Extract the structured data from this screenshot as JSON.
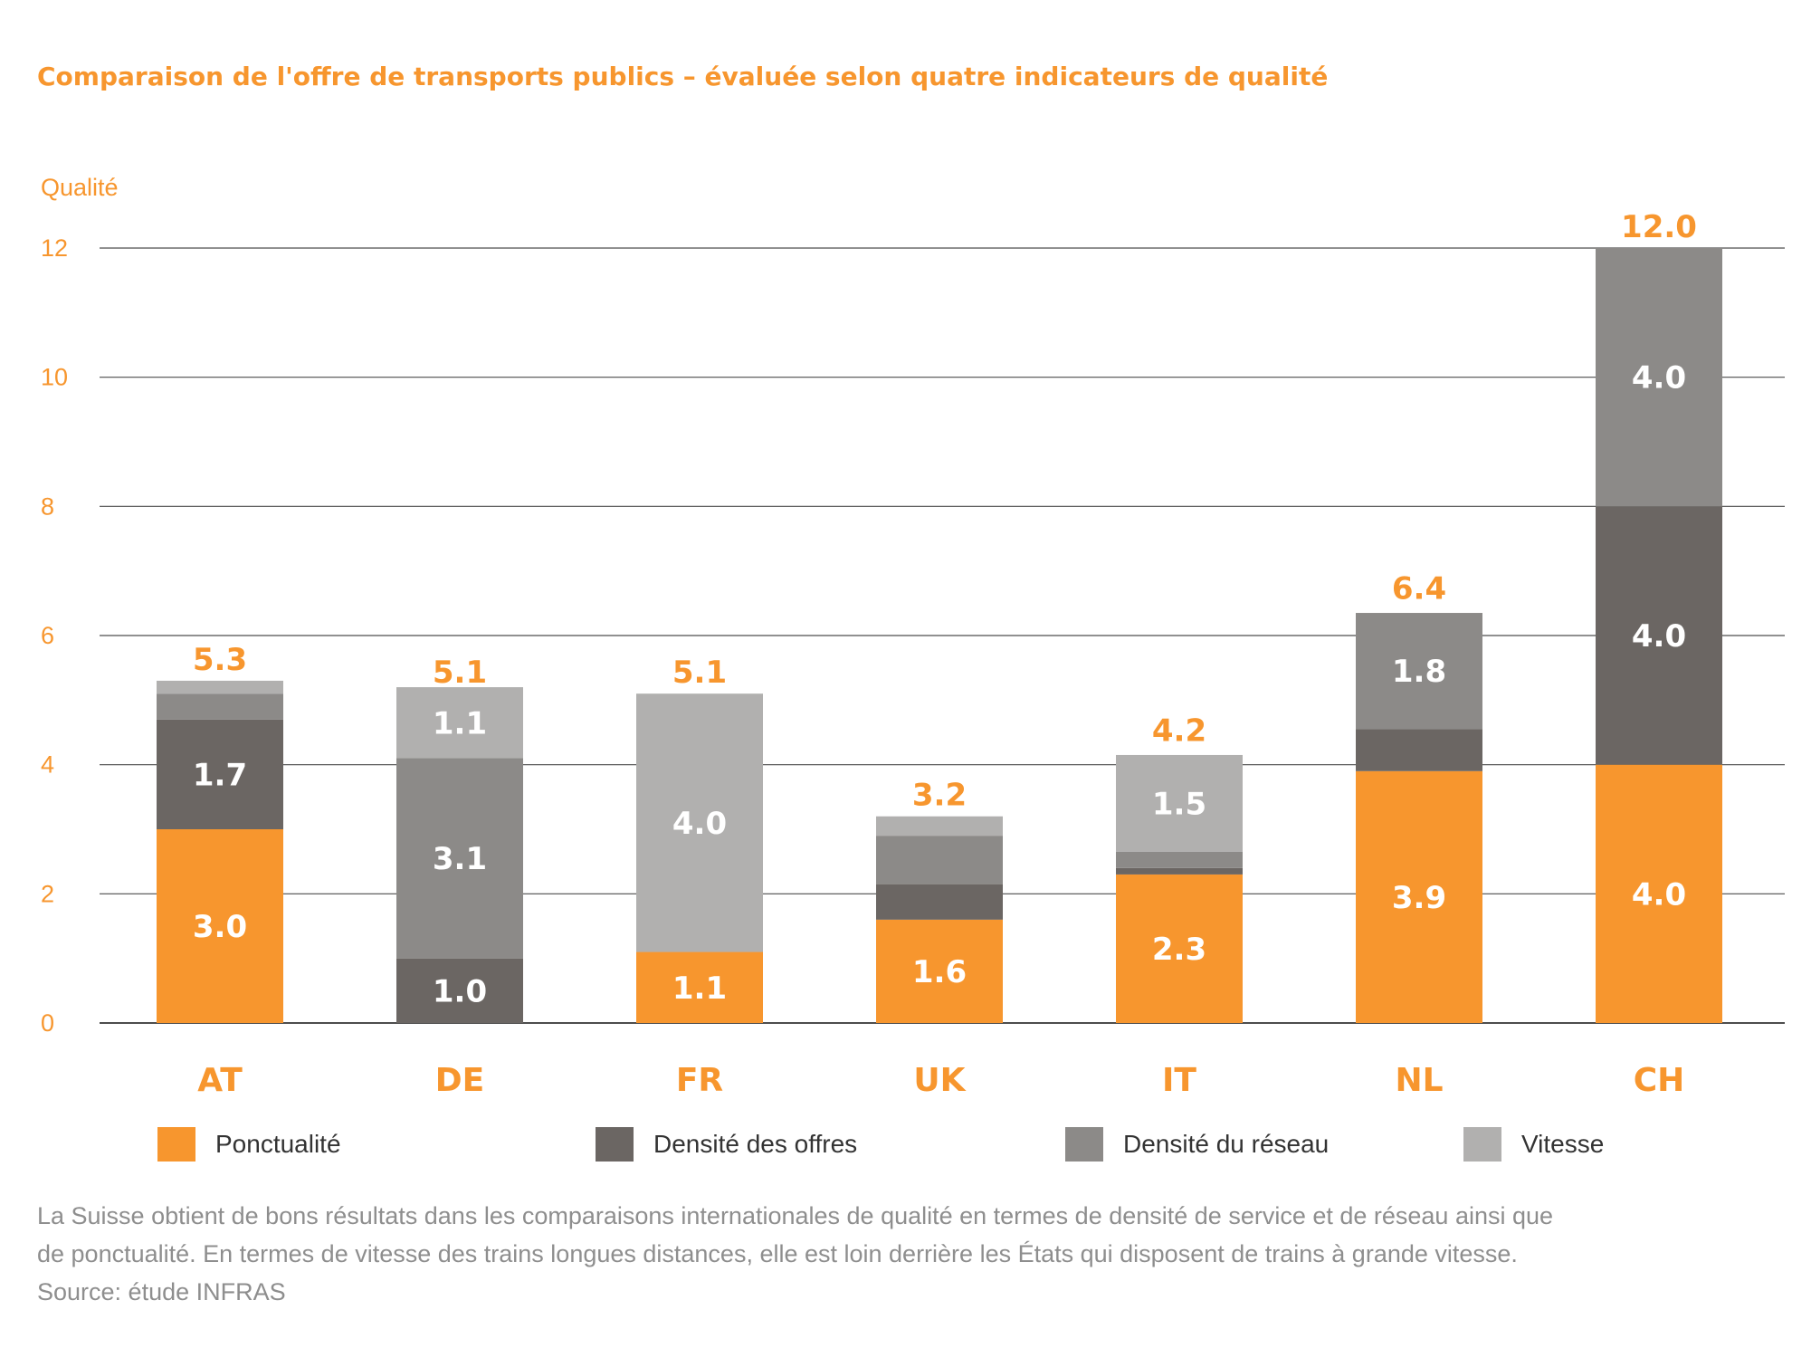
{
  "chart_data": {
    "type": "bar",
    "stacked": true,
    "title": "Comparaison de l'offre de transports publics – évaluée selon quatre indicateurs de qualité",
    "ylabel": "Qualité",
    "xlabel": "",
    "ylim": [
      0,
      12
    ],
    "yticks": [
      "0",
      "2",
      "4",
      "6",
      "8",
      "10",
      "12"
    ],
    "categories": [
      "AT",
      "DE",
      "FR",
      "UK",
      "IT",
      "NL",
      "CH"
    ],
    "totals": [
      5.3,
      5.1,
      5.1,
      3.2,
      4.2,
      6.4,
      12.0
    ],
    "total_labels": [
      "5.3",
      "5.1",
      "5.1",
      "3.2",
      "4.2",
      "6.4",
      "12.0"
    ],
    "series": [
      {
        "name": "Ponctualité",
        "color": "#f7962e",
        "values": [
          3.0,
          0.0,
          1.1,
          1.6,
          2.3,
          3.9,
          4.0
        ],
        "labels": [
          "3.0",
          "",
          "1.1",
          "1.6",
          "2.3",
          "3.9",
          "4.0"
        ]
      },
      {
        "name": "Densité des offres",
        "color": "#6b6663",
        "values": [
          1.7,
          1.0,
          0.0,
          0.55,
          0.1,
          0.65,
          4.0
        ],
        "labels": [
          "1.7",
          "1.0",
          "",
          "",
          "",
          "",
          "4.0"
        ]
      },
      {
        "name": "Densité du réseau",
        "color": "#8c8a88",
        "values": [
          0.4,
          3.1,
          0.0,
          0.75,
          0.25,
          1.8,
          4.0
        ],
        "labels": [
          "",
          "3.1",
          "",
          "",
          "",
          "1.8",
          "4.0"
        ]
      },
      {
        "name": "Vitesse",
        "color": "#b1b0af",
        "values": [
          0.2,
          1.1,
          4.0,
          0.3,
          1.5,
          0.0,
          0.0
        ],
        "labels": [
          "",
          "1.1",
          "4.0",
          "",
          "1.5",
          "",
          ""
        ]
      }
    ],
    "grid": true,
    "legend": "bottom"
  },
  "caption": {
    "line1": "La Suisse obtient de bons résultats dans les comparaisons internationales de qualité en termes de densité de service et de réseau ainsi que",
    "line2": "de ponctualité. En termes de vitesse des trains longues distances, elle est loin derrière les États qui disposent de trains à grande vitesse.",
    "source": "Source: étude INFRAS"
  },
  "colors": {
    "accent": "#f7962e",
    "axis_text": "#f7962e",
    "label_light": "#ffffff",
    "grid": "#555555",
    "caption": "#8e8e8e"
  }
}
